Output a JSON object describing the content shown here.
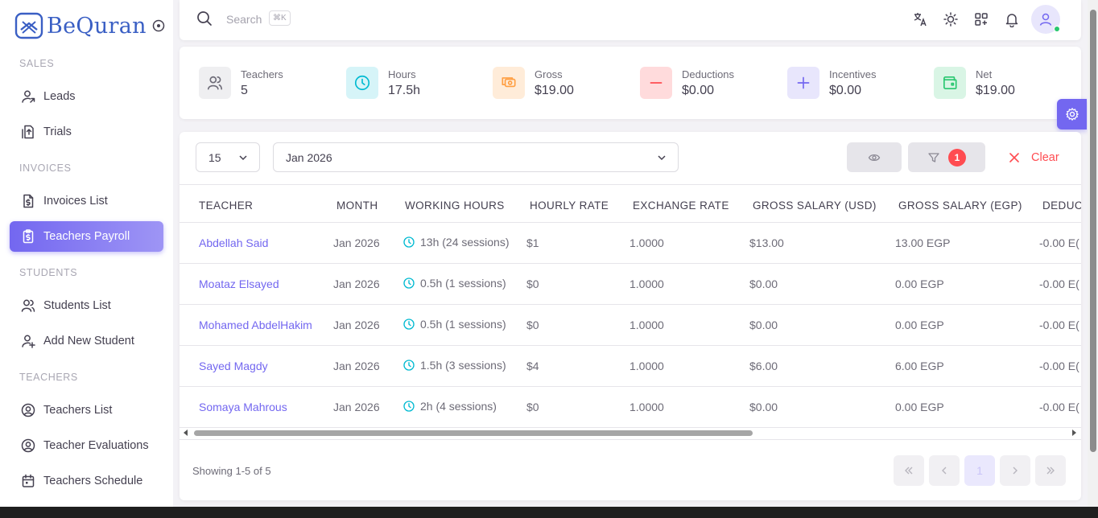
{
  "brand": {
    "name": "BeQuran"
  },
  "sidebar": {
    "sections": [
      {
        "title": "SALES",
        "items": [
          {
            "label": "Leads",
            "icon": "user-arrow-icon"
          },
          {
            "label": "Trials",
            "icon": "file-arrow-icon"
          }
        ]
      },
      {
        "title": "INVOICES",
        "items": [
          {
            "label": "Invoices List",
            "icon": "file-dollar-icon"
          },
          {
            "label": "Teachers Payroll",
            "icon": "clipboard-dollar-icon",
            "active": true
          }
        ]
      },
      {
        "title": "STUDENTS",
        "items": [
          {
            "label": "Students List",
            "icon": "users-icon"
          },
          {
            "label": "Add New Student",
            "icon": "user-plus-icon"
          }
        ]
      },
      {
        "title": "TEACHERS",
        "items": [
          {
            "label": "Teachers List",
            "icon": "user-circle-icon"
          },
          {
            "label": "Teacher Evaluations",
            "icon": "user-circle-icon"
          },
          {
            "label": "Teachers Schedule",
            "icon": "calendar-icon"
          }
        ]
      }
    ]
  },
  "topbar": {
    "search_placeholder": "Search",
    "shortcut": "⌘K"
  },
  "stats": [
    {
      "label": "Teachers",
      "value": "5",
      "icon": "users-icon",
      "color": "#6d6b77",
      "bg": "#efeff1"
    },
    {
      "label": "Hours",
      "value": "17.5h",
      "icon": "clock-icon",
      "color": "#00bad1",
      "bg": "#d6f4f8"
    },
    {
      "label": "Gross",
      "value": "$19.00",
      "icon": "cash-icon",
      "color": "#ff9f43",
      "bg": "#ffecd9"
    },
    {
      "label": "Deductions",
      "value": "$0.00",
      "icon": "minus-icon",
      "color": "#ff4c51",
      "bg": "#ffdbdc"
    },
    {
      "label": "Incentives",
      "value": "$0.00",
      "icon": "plus-icon",
      "color": "#7367f0",
      "bg": "#e8e6fc"
    },
    {
      "label": "Net",
      "value": "$19.00",
      "icon": "wallet-icon",
      "color": "#28c76f",
      "bg": "#d9f5e5"
    }
  ],
  "filters": {
    "per_page": "15",
    "month": "Jan 2026",
    "filter_count": "1",
    "clear_label": "Clear"
  },
  "table": {
    "headers": [
      "TEACHER",
      "MONTH",
      "WORKING HOURS",
      "HOURLY RATE",
      "EXCHANGE RATE",
      "GROSS SALARY (USD)",
      "GROSS SALARY (EGP)",
      "DEDUC"
    ],
    "rows": [
      {
        "teacher": "Abdellah Said",
        "month": "Jan 2026",
        "hours": "13h (24 sessions)",
        "rate": "$1",
        "exchange": "1.0000",
        "gross_usd": "$13.00",
        "gross_egp": "13.00 EGP",
        "deduction": "-0.00 E("
      },
      {
        "teacher": "Moataz Elsayed",
        "month": "Jan 2026",
        "hours": "0.5h (1 sessions)",
        "rate": "$0",
        "exchange": "1.0000",
        "gross_usd": "$0.00",
        "gross_egp": "0.00 EGP",
        "deduction": "-0.00 E("
      },
      {
        "teacher": "Mohamed AbdelHakim",
        "month": "Jan 2026",
        "hours": "0.5h (1 sessions)",
        "rate": "$0",
        "exchange": "1.0000",
        "gross_usd": "$0.00",
        "gross_egp": "0.00 EGP",
        "deduction": "-0.00 E("
      },
      {
        "teacher": "Sayed Magdy",
        "month": "Jan 2026",
        "hours": "1.5h (3 sessions)",
        "rate": "$4",
        "exchange": "1.0000",
        "gross_usd": "$6.00",
        "gross_egp": "6.00 EGP",
        "deduction": "-0.00 E("
      },
      {
        "teacher": "Somaya Mahrous",
        "month": "Jan 2026",
        "hours": "2h (4 sessions)",
        "rate": "$0",
        "exchange": "1.0000",
        "gross_usd": "$0.00",
        "gross_egp": "0.00 EGP",
        "deduction": "-0.00 E("
      }
    ]
  },
  "pagination": {
    "showing": "Showing 1-5 of 5",
    "current": "1"
  },
  "colors": {
    "primary": "#7367f0",
    "danger": "#ff4c51",
    "info": "#00bad1"
  }
}
